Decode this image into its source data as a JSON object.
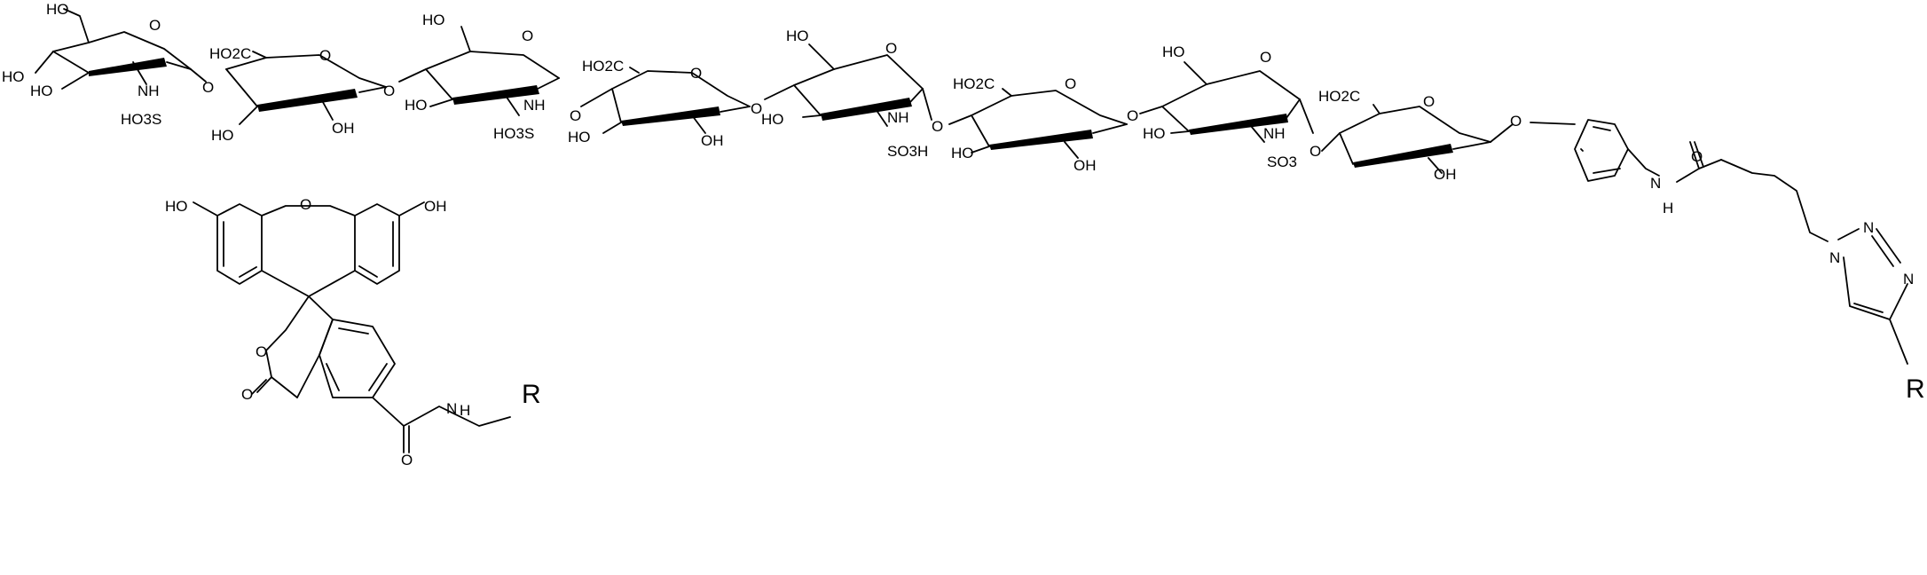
{
  "diagram": {
    "labels": {
      "oh": "HO",
      "oh_r": "OH",
      "o": "O",
      "nh": "NH",
      "n": "N",
      "h": "H",
      "ho3s": "HO3S",
      "so3h": "SO3H",
      "so3": "SO3",
      "ho2c": "HO2C",
      "r": "R"
    },
    "sugar_units": [
      {
        "type": "glucosamine-N-sulfate",
        "ring_o": "O"
      },
      {
        "type": "glucuronic-acid",
        "ring_o": "O"
      },
      {
        "type": "glucosamine-N-sulfate",
        "ring_o": "O"
      },
      {
        "type": "glucuronic-acid",
        "ring_o": "O"
      },
      {
        "type": "glucosamine-N-sulfate",
        "ring_o": "O"
      },
      {
        "type": "glucuronic-acid",
        "ring_o": "O"
      },
      {
        "type": "glucosamine-N-sulfate",
        "ring_o": "O"
      },
      {
        "type": "glucuronic-acid",
        "ring_o": "O"
      }
    ]
  }
}
